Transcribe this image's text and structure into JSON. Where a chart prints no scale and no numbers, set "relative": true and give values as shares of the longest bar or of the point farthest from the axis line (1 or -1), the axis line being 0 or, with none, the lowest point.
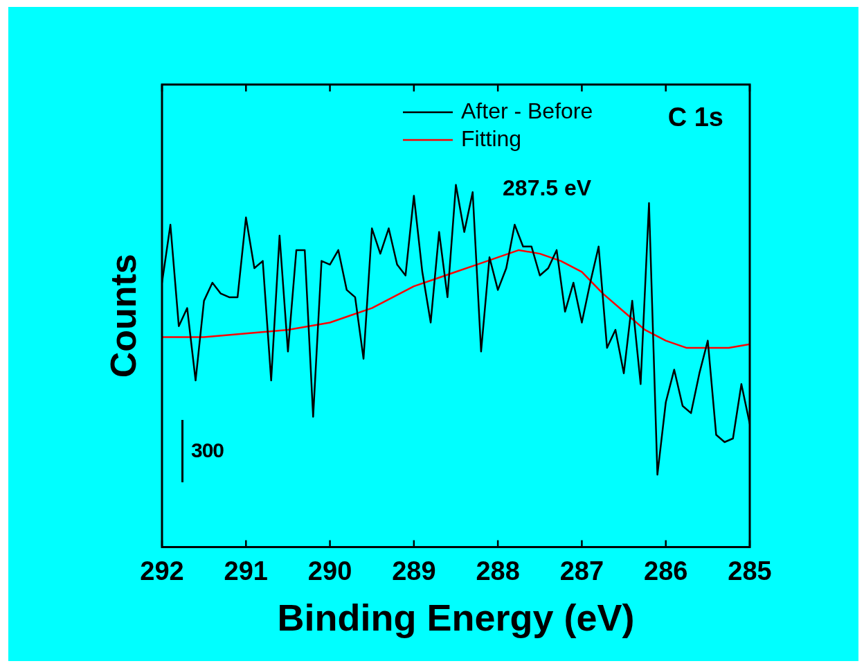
{
  "chart_data": {
    "type": "line",
    "xlabel": "Binding Energy (eV)",
    "ylabel": "Counts",
    "relative": true,
    "xlim": [
      292,
      285
    ],
    "xticks": [
      292,
      291,
      290,
      289,
      288,
      287,
      286,
      285
    ],
    "legend": "top",
    "grid": false,
    "annotations": [
      "C 1s",
      "300",
      "287.5 eV"
    ],
    "series": [
      {
        "name": "After - Before",
        "color": "#000000",
        "x": [
          292,
          291.9,
          291.8,
          291.7,
          291.6,
          291.5,
          291.4,
          291.3,
          291.2,
          291.1,
          291,
          290.9,
          290.8,
          290.7,
          290.6,
          290.5,
          290.4,
          290.3,
          290.2,
          290.1,
          290,
          289.9,
          289.8,
          289.7,
          289.6,
          289.5,
          289.4,
          289.3,
          289.2,
          289.1,
          289,
          288.9,
          288.8,
          288.7,
          288.6,
          288.5,
          288.4,
          288.3,
          288.2,
          288.1,
          288,
          287.9,
          287.8,
          287.7,
          287.6,
          287.5,
          287.4,
          287.3,
          287.2,
          287.1,
          287,
          286.9,
          286.8,
          286.7,
          286.6,
          286.5,
          286.4,
          286.3,
          286.2,
          286.1,
          286,
          285.9,
          285.8,
          285.7,
          285.6,
          285.5,
          285.4,
          285.3,
          285.2,
          285.1,
          285
        ],
        "values": [
          0.73,
          0.89,
          0.61,
          0.66,
          0.46,
          0.68,
          0.73,
          0.7,
          0.69,
          0.69,
          0.91,
          0.77,
          0.79,
          0.46,
          0.86,
          0.54,
          0.82,
          0.82,
          0.36,
          0.79,
          0.78,
          0.82,
          0.71,
          0.69,
          0.52,
          0.88,
          0.81,
          0.88,
          0.78,
          0.75,
          0.97,
          0.76,
          0.62,
          0.87,
          0.69,
          1.0,
          0.87,
          0.98,
          0.54,
          0.8,
          0.71,
          0.77,
          0.89,
          0.83,
          0.83,
          0.75,
          0.77,
          0.82,
          0.65,
          0.73,
          0.62,
          0.73,
          0.83,
          0.55,
          0.6,
          0.48,
          0.68,
          0.45,
          0.95,
          0.2,
          0.4,
          0.49,
          0.39,
          0.37,
          0.48,
          0.57,
          0.31,
          0.29,
          0.3,
          0.45,
          0.34
        ]
      },
      {
        "name": "Fitting",
        "color": "#ff0000",
        "x": [
          292,
          291.5,
          291,
          290.5,
          290,
          289.75,
          289.5,
          289.25,
          289,
          288.75,
          288.5,
          288.25,
          288,
          287.75,
          287.5,
          287.25,
          287,
          286.75,
          286.5,
          286.25,
          286,
          285.75,
          285.5,
          285.25,
          285
        ],
        "values": [
          0.58,
          0.58,
          0.59,
          0.6,
          0.62,
          0.64,
          0.66,
          0.69,
          0.72,
          0.74,
          0.76,
          0.78,
          0.8,
          0.82,
          0.81,
          0.79,
          0.76,
          0.7,
          0.65,
          0.6,
          0.57,
          0.55,
          0.55,
          0.55,
          0.56
        ]
      }
    ]
  }
}
